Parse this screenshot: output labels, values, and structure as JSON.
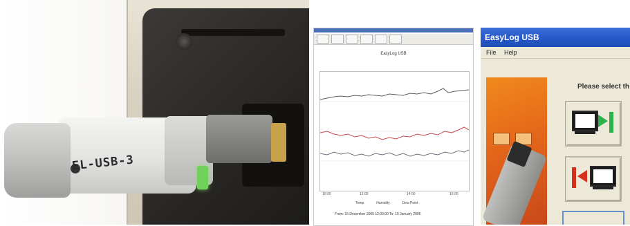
{
  "photo": {
    "device_label": "EL-USB-3"
  },
  "graph_window": {
    "title": "EasyLog USB",
    "x_ticks": [
      "10:00",
      "12:00",
      "14:00",
      "16:00"
    ],
    "legend": [
      "Temp",
      "Humidity",
      "Dew Point"
    ],
    "footer": "From: 15 December 2005 12:00:00    To: 15 January 2006",
    "series_colors": {
      "temp": "#5a5a5a",
      "humidity": "#c8484e",
      "dew": "#6b6f7a"
    }
  },
  "app_window": {
    "title": "EasyLog USB",
    "menu": [
      "File",
      "Help"
    ],
    "prompt": "Please select th",
    "colors": {
      "titlebar": "#2457c7",
      "splash": "#e4661a",
      "setup_arrow": "#2bb34a",
      "download_arrow": "#d6301e"
    }
  }
}
